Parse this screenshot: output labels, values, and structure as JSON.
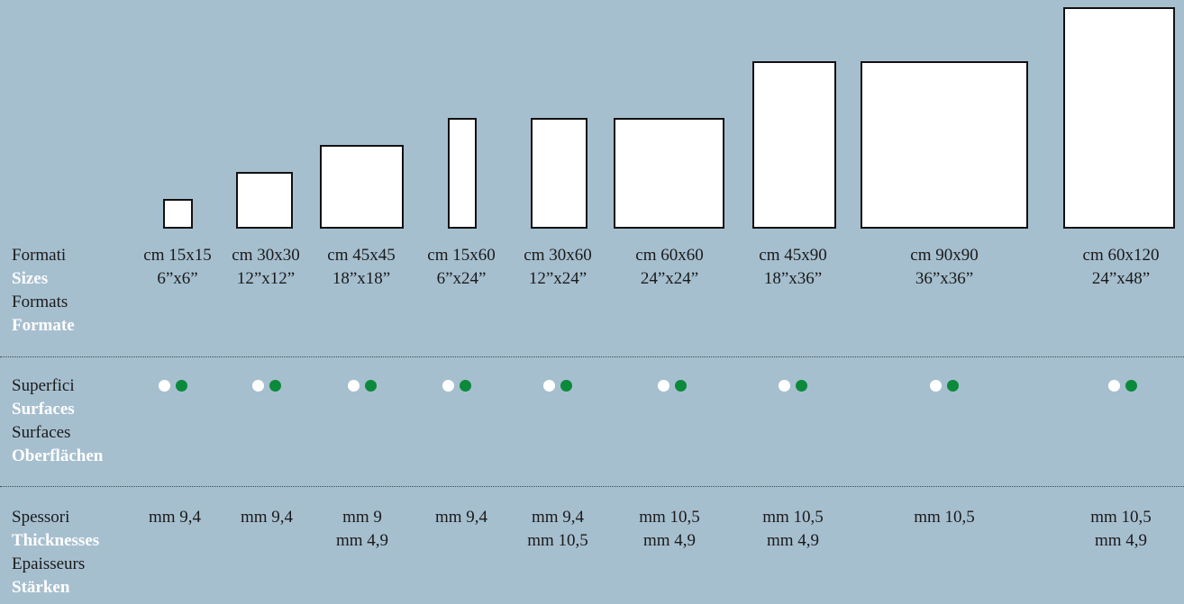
{
  "rows": {
    "formats": {
      "it": "Formati",
      "en": "Sizes",
      "fr": "Formats",
      "de": "Formate"
    },
    "surfaces": {
      "it": "Superfici",
      "en": "Surfaces",
      "fr": "Surfaces",
      "de": "Oberflächen"
    },
    "thickness": {
      "it": "Spessori",
      "en": "Thicknesses",
      "fr": "Epaisseurs",
      "de": "Stärken"
    }
  },
  "sizes": [
    {
      "cm": "cm 15x15",
      "inch": "6”x6”",
      "thick": [
        "mm 9,4"
      ]
    },
    {
      "cm": "cm 30x30",
      "inch": "12”x12”",
      "thick": [
        "mm 9,4"
      ]
    },
    {
      "cm": "cm 45x45",
      "inch": "18”x18”",
      "thick": [
        "mm 9",
        "mm 4,9"
      ]
    },
    {
      "cm": "cm 15x60",
      "inch": "6”x24”",
      "thick": [
        "mm 9,4"
      ]
    },
    {
      "cm": "cm 30x60",
      "inch": "12”x24”",
      "thick": [
        "mm 9,4",
        "mm 10,5"
      ]
    },
    {
      "cm": "cm 60x60",
      "inch": "24”x24”",
      "thick": [
        "mm 10,5",
        "mm 4,9"
      ]
    },
    {
      "cm": "cm 45x90",
      "inch": "18”x36”",
      "thick": [
        "mm 10,5",
        "mm 4,9"
      ]
    },
    {
      "cm": "cm 90x90",
      "inch": "36”x36”",
      "thick": [
        "mm 10,5"
      ]
    },
    {
      "cm": "cm 60x120",
      "inch": "24”x48”",
      "thick": [
        "mm 10,5",
        "mm 4,9"
      ]
    }
  ],
  "colors": {
    "background": "#a6bfcf",
    "surface_white": "#ffffff",
    "surface_green": "#0b8a3b"
  }
}
